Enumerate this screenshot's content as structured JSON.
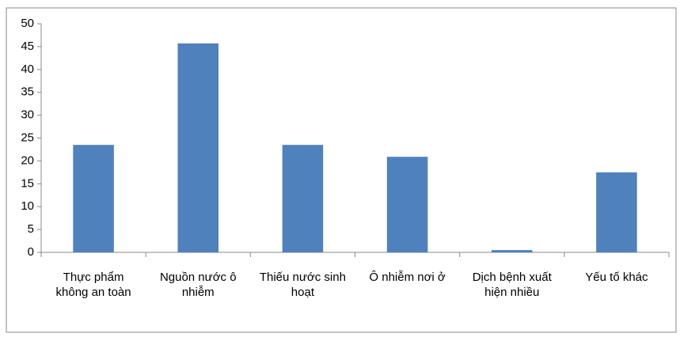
{
  "chart_data": {
    "type": "bar",
    "categories": [
      "Thực phẩm không an toàn",
      "Nguồn nước ô nhiễm",
      "Thiếu nước sinh hoạt",
      "Ô nhiễm nơi ở",
      "Dịch bệnh xuất hiện nhiều",
      "Yếu tố khác"
    ],
    "values": [
      23.5,
      45.7,
      23.5,
      20.9,
      0.5,
      17.5
    ],
    "color": "#4f81bd",
    "ylim": [
      0,
      50
    ],
    "yticks": [
      0,
      5,
      10,
      15,
      20,
      25,
      30,
      35,
      40,
      45,
      50
    ],
    "grid": false
  }
}
